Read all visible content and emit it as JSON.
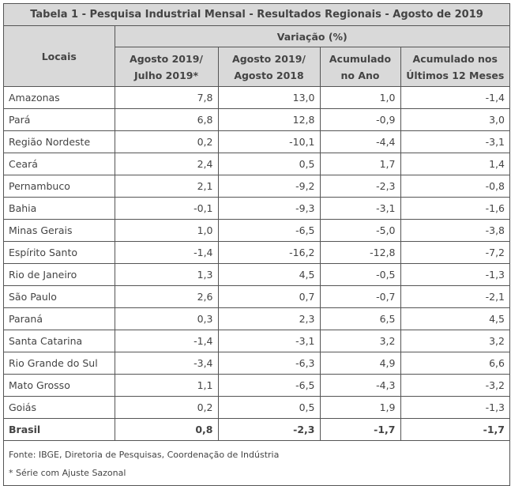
{
  "title": "Tabela 1 - Pesquisa Industrial Mensal - Resultados Regionais - Agosto de 2019",
  "header": {
    "locais": "Locais",
    "variacao": "Variação (%)",
    "columns": [
      {
        "line1": "Agosto 2019/",
        "line2": "Julho 2019*"
      },
      {
        "line1": "Agosto 2019/",
        "line2": "Agosto 2018"
      },
      {
        "line1": "Acumulado",
        "line2": "no Ano"
      },
      {
        "line1": "Acumulado nos",
        "line2": "Últimos 12 Meses"
      }
    ]
  },
  "rows": [
    {
      "local": "Amazonas",
      "values": [
        "7,8",
        "13,0",
        "1,0",
        "-1,4"
      ]
    },
    {
      "local": "Pará",
      "values": [
        "6,8",
        "12,8",
        "-0,9",
        "3,0"
      ]
    },
    {
      "local": "Região Nordeste",
      "values": [
        "0,2",
        "-10,1",
        "-4,4",
        "-3,1"
      ]
    },
    {
      "local": "Ceará",
      "values": [
        "2,4",
        "0,5",
        "1,7",
        "1,4"
      ]
    },
    {
      "local": "Pernambuco",
      "values": [
        "2,1",
        "-9,2",
        "-2,3",
        "-0,8"
      ]
    },
    {
      "local": "Bahia",
      "values": [
        "-0,1",
        "-9,3",
        "-3,1",
        "-1,6"
      ]
    },
    {
      "local": "Minas Gerais",
      "values": [
        "1,0",
        "-6,5",
        "-5,0",
        "-3,8"
      ]
    },
    {
      "local": "Espírito Santo",
      "values": [
        "-1,4",
        "-16,2",
        "-12,8",
        "-7,2"
      ]
    },
    {
      "local": "Rio de Janeiro",
      "values": [
        "1,3",
        "4,5",
        "-0,5",
        "-1,3"
      ]
    },
    {
      "local": "São Paulo",
      "values": [
        "2,6",
        "0,7",
        "-0,7",
        "-2,1"
      ]
    },
    {
      "local": "Paraná",
      "values": [
        "0,3",
        "2,3",
        "6,5",
        "4,5"
      ]
    },
    {
      "local": "Santa Catarina",
      "values": [
        "-1,4",
        "-3,1",
        "3,2",
        "3,2"
      ]
    },
    {
      "local": "Rio Grande do Sul",
      "values": [
        "-3,4",
        "-6,3",
        "4,9",
        "6,6"
      ]
    },
    {
      "local": "Mato Grosso",
      "values": [
        "1,1",
        "-6,5",
        "-4,3",
        "-3,2"
      ]
    },
    {
      "local": "Goiás",
      "values": [
        "0,2",
        "0,5",
        "1,9",
        "-1,3"
      ]
    }
  ],
  "total": {
    "local": "Brasil",
    "values": [
      "0,8",
      "-2,3",
      "-1,7",
      "-1,7"
    ]
  },
  "footer": {
    "source": "Fonte: IBGE, Diretoria de Pesquisas, Coordenação de Indústria",
    "note": "* Série com Ajuste Sazonal"
  }
}
